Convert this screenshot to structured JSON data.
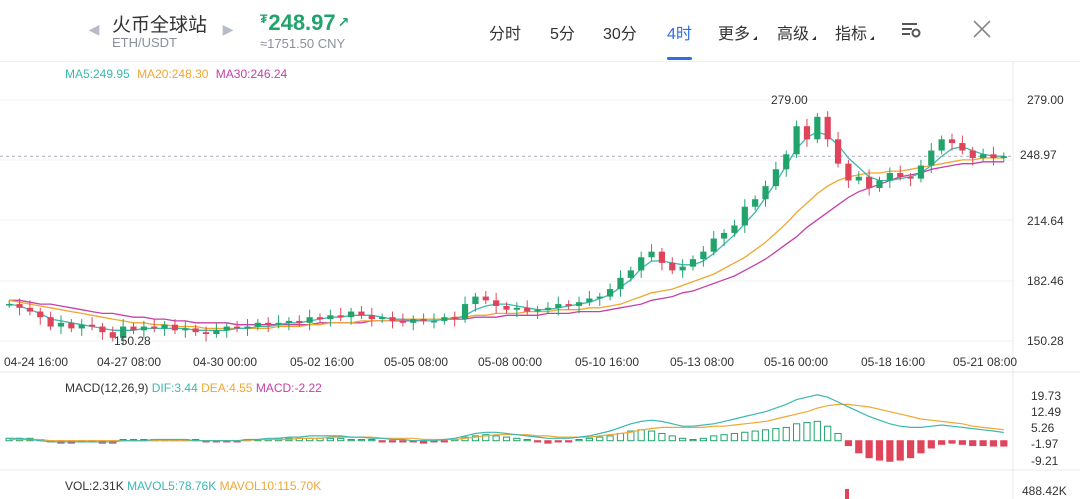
{
  "header": {
    "exchange_name": "火币全球站",
    "pair": "ETH/USDT",
    "price": "248.97",
    "price_symbol": "₮",
    "price_trend_icon": "↗",
    "cny": "≈1751.50 CNY",
    "nav_prev_icon": "◀",
    "nav_next_icon": "▶"
  },
  "tabs": [
    {
      "label": "分时",
      "active": false
    },
    {
      "label": "5分",
      "active": false
    },
    {
      "label": "30分",
      "active": false
    },
    {
      "label": "4时",
      "active": true
    },
    {
      "label": "更多",
      "active": false,
      "dropdown": true
    },
    {
      "label": "高级",
      "active": false,
      "dropdown": true
    },
    {
      "label": "指标",
      "active": false,
      "dropdown": true
    }
  ],
  "icons": {
    "settings": "chart-settings-icon",
    "close": "close-icon"
  },
  "ma_legend": {
    "ma5": "MA5:249.95",
    "ma20": "MA20:248.30",
    "ma30": "MA30:246.24"
  },
  "colors": {
    "up": "#21a36b",
    "down": "#e0445a",
    "ma5": "#3bb8b0",
    "ma20": "#f0a732",
    "ma30": "#c640a8",
    "accent": "#2d6fe3"
  },
  "price_axis": [
    "279.00",
    "248.97",
    "214.64",
    "182.46",
    "150.28"
  ],
  "price_tag": "248.97",
  "annotations": {
    "high": "279.00",
    "low": "150.28"
  },
  "time_axis": [
    "04-24 16:00",
    "04-27 08:00",
    "04-30 00:00",
    "05-02 16:00",
    "05-05 08:00",
    "05-08 00:00",
    "05-10 16:00",
    "05-13 08:00",
    "05-16 00:00",
    "05-18 16:00",
    "05-21 08:00"
  ],
  "macd_legend": {
    "label": "MACD(12,26,9)",
    "dif": "DIF:3.44",
    "dea": "DEA:4.55",
    "macd": "MACD:-2.22"
  },
  "macd_axis": [
    "19.73",
    "12.49",
    "5.26",
    "-1.97",
    "-9.21"
  ],
  "vol_legend": {
    "vol": "VOL:2.31K",
    "mavol5": "MAVOL5:78.76K",
    "mavol10": "MAVOL10:115.70K"
  },
  "vol_axis": "488.42K",
  "chart_data": {
    "type": "candlestick",
    "ylim": [
      150.28,
      279.0
    ],
    "closes": [
      170,
      168,
      166,
      163,
      158,
      160,
      157,
      159,
      158,
      155,
      152,
      158,
      156,
      158,
      157,
      159,
      156,
      157,
      155,
      154,
      156,
      158,
      157,
      158,
      160,
      159,
      160,
      161,
      160,
      163,
      162,
      164,
      163,
      166,
      164,
      162,
      163,
      161,
      160,
      162,
      161,
      161,
      163,
      162,
      170,
      174,
      172,
      169,
      167,
      168,
      166,
      167,
      168,
      170,
      169,
      171,
      173,
      174,
      178,
      184,
      188,
      195,
      198,
      192,
      188,
      190,
      194,
      198,
      205,
      208,
      212,
      222,
      226,
      233,
      242,
      250,
      265,
      258,
      270,
      258,
      245,
      236,
      238,
      232,
      236,
      240,
      238,
      237,
      244,
      252,
      258,
      256,
      252,
      248,
      250,
      248,
      249
    ],
    "ma5": [
      170,
      169,
      167,
      165,
      162,
      161,
      160,
      159,
      158,
      157,
      156,
      156,
      156,
      157,
      157,
      157,
      157,
      157,
      156,
      156,
      156,
      156,
      157,
      157,
      158,
      158,
      159,
      160,
      160,
      161,
      162,
      163,
      163,
      164,
      164,
      164,
      163,
      162,
      162,
      161,
      161,
      161,
      162,
      162,
      164,
      167,
      169,
      170,
      170,
      169,
      168,
      167,
      167,
      168,
      169,
      170,
      171,
      173,
      175,
      179,
      183,
      189,
      193,
      193,
      192,
      191,
      191,
      193,
      197,
      202,
      207,
      213,
      219,
      227,
      235,
      244,
      253,
      259,
      262,
      260,
      255,
      248,
      243,
      238,
      236,
      236,
      237,
      238,
      240,
      244,
      249,
      253,
      254,
      252,
      250,
      249,
      249
    ],
    "ma20": [
      172,
      171,
      170,
      169,
      168,
      167,
      166,
      165,
      164,
      163,
      162,
      161,
      160,
      160,
      159,
      159,
      158,
      158,
      158,
      157,
      157,
      157,
      157,
      157,
      157,
      157,
      158,
      158,
      158,
      159,
      159,
      160,
      160,
      160,
      161,
      161,
      161,
      161,
      162,
      162,
      162,
      162,
      162,
      163,
      163,
      164,
      164,
      165,
      165,
      165,
      166,
      166,
      166,
      167,
      167,
      167,
      168,
      168,
      169,
      170,
      172,
      174,
      176,
      177,
      178,
      180,
      182,
      184,
      186,
      189,
      192,
      195,
      199,
      203,
      208,
      213,
      219,
      224,
      229,
      233,
      236,
      238,
      239,
      240,
      240,
      241,
      241,
      242,
      243,
      244,
      245,
      246,
      247,
      247,
      248,
      248,
      248
    ],
    "ma30": [
      172,
      172,
      171,
      170,
      170,
      169,
      168,
      167,
      166,
      165,
      165,
      164,
      163,
      163,
      162,
      162,
      161,
      161,
      160,
      160,
      160,
      160,
      159,
      159,
      159,
      159,
      159,
      159,
      159,
      159,
      160,
      160,
      160,
      160,
      160,
      161,
      161,
      161,
      161,
      161,
      162,
      162,
      162,
      162,
      162,
      163,
      163,
      163,
      164,
      164,
      164,
      164,
      165,
      165,
      165,
      166,
      166,
      166,
      167,
      168,
      169,
      170,
      172,
      173,
      174,
      176,
      177,
      179,
      181,
      183,
      185,
      188,
      191,
      194,
      198,
      202,
      206,
      211,
      215,
      219,
      223,
      227,
      230,
      232,
      234,
      236,
      238,
      239,
      240,
      242,
      243,
      244,
      245,
      245,
      246,
      246,
      246
    ],
    "macd_hist": [
      1,
      1,
      1,
      0.5,
      -0.5,
      -1,
      -1,
      -0.5,
      -0.5,
      -1,
      -1,
      0.5,
      0.5,
      0.5,
      0.5,
      0.5,
      0.5,
      0.5,
      0.5,
      -0.5,
      -0.5,
      -0.5,
      -0.5,
      0.5,
      0.5,
      0.5,
      1,
      1,
      1,
      1,
      1,
      1,
      1,
      0.5,
      0.5,
      0.5,
      -0.5,
      -0.5,
      -0.5,
      -0.5,
      -1,
      -0.5,
      -0.5,
      0.5,
      1.5,
      2,
      2.5,
      2,
      1.5,
      1,
      0.5,
      -0.5,
      -1,
      -0.5,
      -0.5,
      0.5,
      1,
      1.5,
      2,
      3,
      4,
      4.5,
      4,
      3,
      2,
      1,
      0.5,
      1,
      2,
      2.5,
      3,
      3.5,
      4,
      4.5,
      5,
      5.5,
      7,
      7.5,
      8,
      6,
      3,
      -2,
      -5,
      -7,
      -8,
      -8.5,
      -8,
      -7,
      -5,
      -3,
      -1.5,
      -1,
      -1.5,
      -2,
      -2,
      -2.2,
      -2.2
    ],
    "dif": [
      1,
      1,
      0.5,
      0,
      -0.5,
      -0.5,
      -0.5,
      -0.5,
      -0.5,
      -0.5,
      -0.5,
      0,
      0,
      0,
      0.5,
      0.5,
      0.5,
      0.5,
      0,
      0,
      0,
      0,
      0,
      0.5,
      0.5,
      1,
      1,
      1.5,
      1.5,
      2,
      2,
      2,
      2,
      1.5,
      1.5,
      1,
      1,
      0.5,
      0.5,
      0,
      0,
      0,
      0.5,
      1,
      2,
      3,
      3.5,
      3.5,
      3,
      2.5,
      2,
      1.5,
      1,
      1,
      1,
      1.5,
      2,
      3,
      4,
      5.5,
      7,
      8,
      8.5,
      8,
      7,
      6,
      6,
      6.5,
      7,
      8,
      9,
      10,
      11,
      12,
      13.5,
      15,
      17,
      18,
      19,
      18,
      16,
      14,
      12,
      10,
      8.5,
      7,
      6,
      5.5,
      5.5,
      6,
      6.5,
      6,
      5.5,
      5,
      4.5,
      4,
      3.4
    ],
    "dea": [
      0.5,
      0.5,
      0.5,
      0.5,
      0,
      0,
      0,
      0,
      0,
      0,
      0,
      0,
      0,
      0,
      0,
      0,
      0,
      0,
      0,
      0,
      0,
      0,
      0,
      0,
      0.5,
      0.5,
      0.5,
      0.5,
      1,
      1,
      1,
      1.5,
      1.5,
      1.5,
      1.5,
      1.5,
      1,
      1,
      1,
      1,
      0.5,
      0.5,
      0.5,
      0.5,
      1,
      1.5,
      2,
      2.5,
      2.5,
      2.5,
      2.5,
      2,
      2,
      1.5,
      1.5,
      1.5,
      1.5,
      2,
      2.5,
      3,
      3.5,
      4.5,
      5,
      5.5,
      5.5,
      5.5,
      5.5,
      5.5,
      6,
      6,
      6.5,
      7,
      7.5,
      8,
      9,
      10,
      11,
      12,
      13.5,
      14.5,
      15,
      15,
      14.5,
      14,
      13,
      12,
      11,
      10,
      9,
      8.5,
      8,
      7.5,
      7,
      6,
      5.5,
      5,
      4.55
    ]
  }
}
